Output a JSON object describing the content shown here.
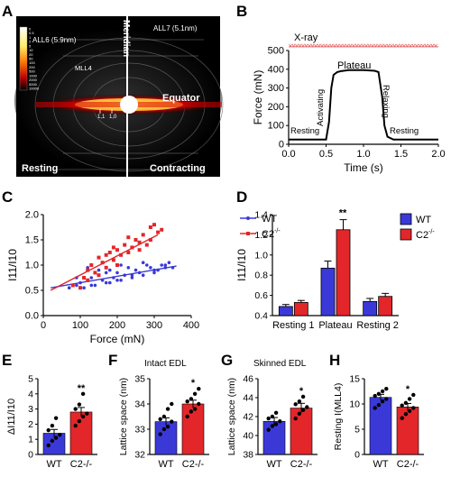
{
  "panels": {
    "A": {
      "letter": "A",
      "labels": {
        "all6": "ALL6 (5.9nm)",
        "all7": "ALL7 (5.1nm)",
        "mll4": "MLL4",
        "meridian": "Meridian",
        "equator": "Equator",
        "resting": "Resting",
        "contracting": "Contracting",
        "r11": "1,1",
        "r10": "1,0"
      },
      "colorbar_ticks": [
        "0",
        "0.5",
        "1",
        "2",
        "5",
        "10",
        "20",
        "50",
        "100",
        "200",
        "500",
        "1000",
        "2000",
        "5000",
        "10000"
      ]
    },
    "B": {
      "letter": "B",
      "xray": "X-ray",
      "phases": {
        "resting1": "Resting",
        "activating": "Activating",
        "plateau": "Plateau",
        "relaxing": "Relaxing",
        "resting2": "Resting"
      }
    },
    "C": {
      "letter": "C",
      "legend_wt": "WT",
      "legend_c2": "C2"
    },
    "D": {
      "letter": "D",
      "legend_wt": "WT",
      "legend_c2": "C2",
      "sig": "**"
    },
    "E": {
      "letter": "E",
      "sig": "**"
    },
    "F": {
      "letter": "F",
      "title": "Intact EDL",
      "sig": "*"
    },
    "G": {
      "letter": "G",
      "title": "Skinned EDL",
      "sig": "*"
    },
    "H": {
      "letter": "H",
      "sig": "*"
    }
  },
  "colors": {
    "wt": "#3a39d8",
    "c2": "#e3262a",
    "trace": "#000000"
  },
  "chart_data": [
    {
      "panel": "B",
      "type": "line",
      "xlabel": "Time (s)",
      "ylabel": "Force (mN)",
      "xlim": [
        0,
        2
      ],
      "ylim": [
        0,
        500
      ],
      "xticks": [
        "0.0",
        "0.5",
        "1.0",
        "1.5",
        "2.0"
      ],
      "yticks": [
        "0",
        "100",
        "200",
        "300",
        "400",
        "500"
      ],
      "x": [
        0,
        0.5,
        0.54,
        0.57,
        0.6,
        0.65,
        0.7,
        0.8,
        1.0,
        1.15,
        1.2,
        1.25,
        1.28,
        1.32,
        1.4,
        2.0
      ],
      "y": [
        25,
        25,
        120,
        300,
        370,
        385,
        390,
        395,
        395,
        392,
        385,
        250,
        100,
        40,
        25,
        25
      ],
      "xray_marker": {
        "y": 520,
        "x_range": [
          0,
          2
        ]
      }
    },
    {
      "panel": "C",
      "type": "scatter",
      "xlabel": "Force (mN)",
      "ylabel": "I11/I10",
      "xlim": [
        0,
        400
      ],
      "ylim": [
        0,
        2
      ],
      "xticks": [
        "0",
        "100",
        "200",
        "300",
        "400"
      ],
      "yticks": [
        "0.0",
        "0.5",
        "1.0",
        "1.5",
        "2.0"
      ],
      "series": [
        {
          "name": "WT",
          "x": [
            70,
            90,
            100,
            110,
            120,
            130,
            140,
            150,
            160,
            170,
            180,
            190,
            200,
            210,
            220,
            230,
            240,
            250,
            260,
            270,
            280,
            290,
            300,
            310,
            320,
            330,
            340,
            350,
            120,
            150,
            180,
            210,
            240,
            270,
            300,
            330,
            90,
            130,
            170,
            200
          ],
          "y": [
            0.55,
            0.6,
            0.65,
            0.55,
            0.7,
            0.75,
            0.6,
            0.8,
            0.7,
            0.65,
            0.9,
            0.75,
            0.85,
            0.7,
            0.8,
            0.95,
            0.75,
            0.9,
            0.85,
            0.8,
            1.0,
            0.95,
            0.85,
            0.9,
            1.0,
            0.95,
            1.05,
            0.95,
            0.95,
            0.9,
            0.65,
            1.0,
            0.8,
            1.05,
            0.9,
            1.0,
            0.75,
            0.6,
            0.85,
            0.7
          ],
          "trend": [
            [
              20,
              0.55
            ],
            [
              360,
              0.98
            ]
          ]
        },
        {
          "name": "C2-/-",
          "x": [
            80,
            100,
            110,
            120,
            130,
            140,
            150,
            160,
            170,
            180,
            190,
            200,
            210,
            220,
            230,
            240,
            250,
            260,
            270,
            280,
            290,
            300,
            310,
            320,
            150,
            170,
            200,
            230,
            260,
            290,
            120,
            190
          ],
          "y": [
            0.6,
            0.55,
            0.75,
            0.9,
            1.0,
            0.85,
            1.15,
            1.05,
            0.95,
            1.25,
            1.1,
            1.3,
            1.2,
            1.4,
            1.25,
            1.35,
            1.5,
            1.45,
            1.6,
            1.4,
            1.75,
            1.8,
            1.65,
            1.7,
            0.8,
            1.2,
            1.0,
            1.55,
            1.3,
            1.5,
            0.7,
            1.35
          ],
          "trend": [
            [
              20,
              0.5
            ],
            [
              310,
              1.6
            ]
          ]
        }
      ],
      "legend": "top-right"
    },
    {
      "panel": "D",
      "type": "bar",
      "ylabel": "I11/I10",
      "categories": [
        "Resting 1",
        "Plateau",
        "Resting 2"
      ],
      "ylim": [
        0.4,
        1.4
      ],
      "yticks": [
        "0.4",
        "0.6",
        "0.8",
        "1.0",
        "1.2",
        "1.4"
      ],
      "series": [
        {
          "name": "WT",
          "values": [
            0.49,
            0.87,
            0.54
          ],
          "errors": [
            0.02,
            0.07,
            0.03
          ]
        },
        {
          "name": "C2-/-",
          "values": [
            0.53,
            1.25,
            0.59
          ],
          "errors": [
            0.02,
            0.1,
            0.03
          ]
        }
      ],
      "legend": "top-right"
    },
    {
      "panel": "E",
      "type": "bar",
      "ylabel": "ΔI11/I10",
      "categories": [
        "WT",
        "C2-/-"
      ],
      "ylim": [
        0,
        5
      ],
      "yticks": [
        "0",
        "1",
        "2",
        "3",
        "4",
        "5"
      ],
      "values": [
        1.4,
        2.8
      ],
      "errors": [
        0.25,
        0.3
      ],
      "points": [
        [
          0.6,
          0.9,
          1.1,
          1.3,
          1.6,
          1.9,
          2.4
        ],
        [
          1.9,
          2.2,
          2.5,
          2.7,
          3.0,
          3.3,
          4.0
        ]
      ]
    },
    {
      "panel": "F",
      "type": "bar",
      "ylabel": "Lattice space (nm)",
      "categories": [
        "WT",
        "C2-/-"
      ],
      "ylim": [
        32,
        35
      ],
      "yticks": [
        "32",
        "33",
        "34",
        "35"
      ],
      "values": [
        33.3,
        34.0
      ],
      "errors": [
        0.15,
        0.15
      ],
      "points": [
        [
          32.8,
          33.0,
          33.1,
          33.3,
          33.4,
          33.5,
          33.8,
          34.0
        ],
        [
          33.5,
          33.7,
          33.8,
          34.0,
          34.1,
          34.2,
          34.4,
          34.6
        ]
      ]
    },
    {
      "panel": "G",
      "type": "bar",
      "ylabel": "Lattice space (nm)",
      "categories": [
        "WT",
        "C2-/-"
      ],
      "ylim": [
        38,
        46
      ],
      "yticks": [
        "38",
        "40",
        "42",
        "44",
        "46"
      ],
      "values": [
        41.5,
        42.9
      ],
      "errors": [
        0.4,
        0.5
      ],
      "points": [
        [
          40.6,
          41.0,
          41.2,
          41.5,
          41.8,
          42.0,
          42.4
        ],
        [
          41.8,
          42.3,
          42.7,
          43.0,
          43.3,
          43.6,
          44.1
        ]
      ]
    },
    {
      "panel": "H",
      "type": "bar",
      "ylabel": "Resting I(MLL4)",
      "categories": [
        "WT",
        "C2-/-"
      ],
      "ylim": [
        0,
        15
      ],
      "yticks": [
        "0",
        "5",
        "10",
        "15"
      ],
      "values": [
        11.3,
        9.4
      ],
      "errors": [
        0.6,
        0.7
      ],
      "points": [
        [
          9.2,
          9.8,
          10.5,
          11.0,
          11.6,
          12.0,
          12.5,
          13.0
        ],
        [
          7.2,
          8.0,
          8.6,
          9.2,
          9.7,
          10.2,
          11.0,
          11.8
        ]
      ]
    }
  ]
}
